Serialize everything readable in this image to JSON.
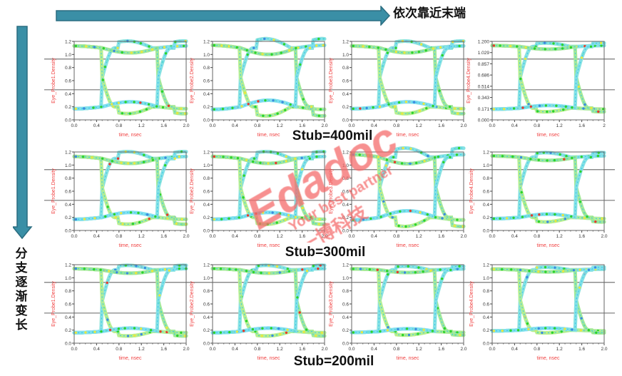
{
  "annotations": {
    "horizontal_arrow_label": "依次靠近末端",
    "vertical_arrow_label": "分支逐渐变长",
    "arrow_color": "#3a8fa6"
  },
  "rows": [
    {
      "label": "Stub=400mil"
    },
    {
      "label": "Stub=300mil"
    },
    {
      "label": "Stub=200mil"
    }
  ],
  "watermark": {
    "brand": "Edadoc",
    "slogan": "Your best partner",
    "chinese": "一博科技",
    "color": "#f46b6b"
  },
  "chart_data": [
    {
      "type": "line",
      "subtype": "eye-diagram",
      "row": "Stub=400mil",
      "ylabel": "Eye_Probe1.Density",
      "xlabel": "time, nsec",
      "xlim": [
        0,
        2
      ],
      "ylim": [
        0,
        1.2
      ],
      "xticks": [
        "0.0",
        "0.4",
        "0.8",
        "1.2",
        "1.6",
        "2.0"
      ],
      "yticks": [
        "0.0",
        "0.2",
        "0.4",
        "0.6",
        "0.8",
        "1.0",
        "1.2"
      ],
      "high_level": 1.1,
      "low_level": 0.2,
      "crossings": [
        0.5,
        1.5
      ],
      "ripple": 0.15
    },
    {
      "type": "line",
      "subtype": "eye-diagram",
      "row": "Stub=400mil",
      "ylabel": "Eye_Probe2.Density",
      "xlabel": "time, nsec",
      "xlim": [
        0,
        2
      ],
      "ylim": [
        0,
        1.2
      ],
      "xticks": [
        "0.0",
        "0.4",
        "0.8",
        "1.2",
        "1.6",
        "2.0"
      ],
      "yticks": [
        "0.0",
        "0.2",
        "0.4",
        "0.6",
        "0.8",
        "1.0",
        "1.2"
      ],
      "high_level": 1.1,
      "low_level": 0.2,
      "crossings": [
        0.5,
        1.5
      ],
      "ripple": 0.2
    },
    {
      "type": "line",
      "subtype": "eye-diagram",
      "row": "Stub=400mil",
      "ylabel": "Eye_Probe3.Density",
      "xlabel": "time, nsec",
      "xlim": [
        0,
        2
      ],
      "ylim": [
        0,
        1.2
      ],
      "xticks": [
        "0.0",
        "0.4",
        "0.8",
        "1.2",
        "1.6",
        "2.0"
      ],
      "yticks": [
        "0.0",
        "0.2",
        "0.4",
        "0.6",
        "0.8",
        "1.0",
        "1.2"
      ],
      "high_level": 1.1,
      "low_level": 0.2,
      "crossings": [
        0.5,
        1.5
      ],
      "ripple": 0.15
    },
    {
      "type": "line",
      "subtype": "eye-diagram",
      "row": "Stub=400mil",
      "ylabel": "Eye_Probe4.Density",
      "xlabel": "time, nsec",
      "xlim": [
        0,
        2
      ],
      "ylim": [
        0,
        1.2
      ],
      "xticks": [
        "0.0",
        "0.4",
        "0.8",
        "1.2",
        "1.6",
        "2"
      ],
      "yticks": [
        "0.000",
        "0.171",
        "0.343",
        "0.514",
        "0.686",
        "0.857",
        "1.029",
        "1.200"
      ],
      "high_level": 1.12,
      "low_level": 0.18,
      "crossings": [
        0.5,
        1.5
      ],
      "ripple": 0.08
    },
    {
      "type": "line",
      "subtype": "eye-diagram",
      "row": "Stub=300mil",
      "ylabel": "Eye_Probe1.Density",
      "xlabel": "time, nsec",
      "xlim": [
        0,
        2
      ],
      "ylim": [
        0,
        1.2
      ],
      "xticks": [
        "0.0",
        "0.4",
        "0.8",
        "1.2",
        "1.6",
        "2.0"
      ],
      "yticks": [
        "0.0",
        "0.2",
        "0.4",
        "0.6",
        "0.8",
        "1.0",
        "1.2"
      ],
      "high_level": 1.1,
      "low_level": 0.2,
      "crossings": [
        0.5,
        1.5
      ],
      "ripple": 0.15
    },
    {
      "type": "line",
      "subtype": "eye-diagram",
      "row": "Stub=300mil",
      "ylabel": "Eye_Probe2.Density",
      "xlabel": "time, nsec",
      "xlim": [
        0,
        2
      ],
      "ylim": [
        0,
        1.2
      ],
      "xticks": [
        "0.0",
        "0.4",
        "0.8",
        "1.2",
        "1.6",
        "2.0"
      ],
      "yticks": [
        "0.0",
        "0.2",
        "0.4",
        "0.6",
        "0.8",
        "1.0",
        "1.2"
      ],
      "high_level": 1.1,
      "low_level": 0.2,
      "crossings": [
        0.5,
        1.5
      ],
      "ripple": 0.15
    },
    {
      "type": "line",
      "subtype": "eye-diagram",
      "row": "Stub=300mil",
      "ylabel": "Eye_Probe3.Density",
      "xlabel": "time, nsec",
      "xlim": [
        0,
        2
      ],
      "ylim": [
        0,
        1.2
      ],
      "xticks": [
        "0.0",
        "0.4",
        "0.8",
        "1.2",
        "1.6",
        "2.0"
      ],
      "yticks": [
        "0.0",
        "0.2",
        "0.4",
        "0.6",
        "0.8",
        "1.0",
        "1.2"
      ],
      "high_level": 1.12,
      "low_level": 0.2,
      "crossings": [
        0.5,
        1.5
      ],
      "ripple": 0.2
    },
    {
      "type": "line",
      "subtype": "eye-diagram",
      "row": "Stub=300mil",
      "ylabel": "Eye_Probe4.Density",
      "xlabel": "time, nsec",
      "xlim": [
        0,
        2
      ],
      "ylim": [
        0,
        1.2
      ],
      "xticks": [
        "0.0",
        "0.4",
        "0.8",
        "1.2",
        "1.6",
        "2.0"
      ],
      "yticks": [
        "0.0",
        "0.2",
        "0.4",
        "0.6",
        "0.8",
        "1.0",
        "1.2"
      ],
      "high_level": 1.12,
      "low_level": 0.2,
      "crossings": [
        0.5,
        1.5
      ],
      "ripple": 0.1
    },
    {
      "type": "line",
      "subtype": "eye-diagram",
      "row": "Stub=200mil",
      "ylabel": "Eye_Probe1.Density",
      "xlabel": "time, nsec",
      "xlim": [
        0,
        2
      ],
      "ylim": [
        0,
        1.2
      ],
      "xticks": [
        "0.0",
        "0.4",
        "0.8",
        "1.2",
        "1.6",
        "2.0"
      ],
      "yticks": [
        "0.0",
        "0.2",
        "0.4",
        "0.6",
        "0.8",
        "1.0",
        "1.2"
      ],
      "high_level": 1.12,
      "low_level": 0.18,
      "crossings": [
        0.5,
        1.5
      ],
      "ripple": 0.1
    },
    {
      "type": "line",
      "subtype": "eye-diagram",
      "row": "Stub=200mil",
      "ylabel": "Eye_Probe2.Density",
      "xlabel": "time, nsec",
      "xlim": [
        0,
        2
      ],
      "ylim": [
        0,
        1.2
      ],
      "xticks": [
        "0.0",
        "0.4",
        "0.8",
        "1.2",
        "1.6",
        "2.0"
      ],
      "yticks": [
        "0.0",
        "0.2",
        "0.4",
        "0.6",
        "0.8",
        "1.0",
        "1.2"
      ],
      "high_level": 1.12,
      "low_level": 0.18,
      "crossings": [
        0.5,
        1.5
      ],
      "ripple": 0.1
    },
    {
      "type": "line",
      "subtype": "eye-diagram",
      "row": "Stub=200mil",
      "ylabel": "Eye_Probe3.Density",
      "xlabel": "time, nsec",
      "xlim": [
        0,
        2
      ],
      "ylim": [
        0,
        1.2
      ],
      "xticks": [
        "0.0",
        "0.4",
        "0.8",
        "1.2",
        "1.6",
        "2.0"
      ],
      "yticks": [
        "0.0",
        "0.2",
        "0.4",
        "0.6",
        "0.8",
        "1.0",
        "1.2"
      ],
      "high_level": 1.12,
      "low_level": 0.18,
      "crossings": [
        0.5,
        1.5
      ],
      "ripple": 0.08
    },
    {
      "type": "line",
      "subtype": "eye-diagram",
      "row": "Stub=200mil",
      "ylabel": "Eye_Probe4.Density",
      "xlabel": "time, nsec",
      "xlim": [
        0,
        2
      ],
      "ylim": [
        0,
        1.2
      ],
      "xticks": [
        "0.0",
        "0.4",
        "0.8",
        "1.2",
        "1.6",
        "2.0"
      ],
      "yticks": [
        "0.0",
        "0.2",
        "0.4",
        "0.6",
        "0.8",
        "1.0",
        "1.2"
      ],
      "high_level": 1.12,
      "low_level": 0.2,
      "crossings": [
        0.5,
        1.5
      ],
      "ripple": 0.06
    }
  ]
}
